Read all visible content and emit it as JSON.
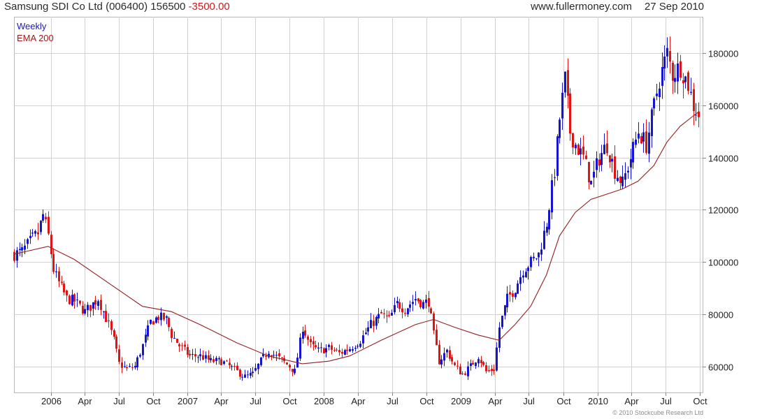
{
  "header": {
    "name": "Samsung SDI Co Ltd (006400)",
    "last": "156500",
    "change": "-3500.00",
    "site": "www.fullermoney.com",
    "date": "27 Sep 2010"
  },
  "legend": {
    "interval": "Weekly",
    "indicator": "EMA 200"
  },
  "credit": "© 2010 Stockcube Research Ltd",
  "colors": {
    "up": "#1414d2",
    "down": "#e01414",
    "ema": "#961e1e",
    "grid": "#d2d2d2"
  },
  "chart_data": {
    "type": "candlestick",
    "frequency": "weekly",
    "x_tick_labels": [
      "2006",
      "Apr",
      "Jul",
      "Oct",
      "2007",
      "Apr",
      "Jul",
      "Oct",
      "2008",
      "Apr",
      "Jul",
      "Oct",
      "2009",
      "Apr",
      "Jul",
      "Oct",
      "2010",
      "Apr",
      "Jul",
      "Oct"
    ],
    "y_tick_labels": [
      "60000",
      "80000",
      "100000",
      "120000",
      "140000",
      "160000",
      "180000"
    ],
    "ylim": [
      50000,
      194000
    ],
    "grid": true,
    "legend_position": "top-left",
    "price_path": [
      [
        "2005-09-26",
        103000
      ],
      [
        "2005-10-17",
        104000
      ],
      [
        "2005-11-14",
        109000
      ],
      [
        "2005-11-28",
        111000
      ],
      [
        "2005-12-12",
        118000
      ],
      [
        "2005-12-26",
        110000
      ],
      [
        "2006-01-09",
        97000
      ],
      [
        "2006-01-23",
        92000
      ],
      [
        "2006-02-13",
        86000
      ],
      [
        "2006-03-06",
        85000
      ],
      [
        "2006-04-03",
        81000
      ],
      [
        "2006-04-17",
        83000
      ],
      [
        "2006-05-08",
        86000
      ],
      [
        "2006-05-22",
        81000
      ],
      [
        "2006-06-05",
        76000
      ],
      [
        "2006-06-19",
        70000
      ],
      [
        "2006-07-03",
        61000
      ],
      [
        "2006-07-24",
        59000
      ],
      [
        "2006-08-14",
        60000
      ],
      [
        "2006-09-04",
        68000
      ],
      [
        "2006-09-25",
        77000
      ],
      [
        "2006-10-16",
        79000
      ],
      [
        "2006-11-06",
        78000
      ],
      [
        "2006-11-20",
        72000
      ],
      [
        "2006-12-11",
        68000
      ],
      [
        "2007-01-08",
        64000
      ],
      [
        "2007-02-05",
        64000
      ],
      [
        "2007-03-05",
        62000
      ],
      [
        "2007-04-02",
        62000
      ],
      [
        "2007-04-23",
        60000
      ],
      [
        "2007-05-14",
        58000
      ],
      [
        "2007-06-04",
        56000
      ],
      [
        "2007-06-25",
        57000
      ],
      [
        "2007-07-16",
        62000
      ],
      [
        "2007-08-06",
        66000
      ],
      [
        "2007-09-03",
        63000
      ],
      [
        "2007-10-01",
        60000
      ],
      [
        "2007-10-15",
        58000
      ],
      [
        "2007-11-05",
        75000
      ],
      [
        "2007-11-26",
        68000
      ],
      [
        "2007-12-17",
        66000
      ],
      [
        "2008-01-14",
        67000
      ],
      [
        "2008-02-11",
        65000
      ],
      [
        "2008-03-10",
        67000
      ],
      [
        "2008-04-07",
        70000
      ],
      [
        "2008-05-05",
        76000
      ],
      [
        "2008-06-02",
        80000
      ],
      [
        "2008-06-23",
        78000
      ],
      [
        "2008-07-14",
        84000
      ],
      [
        "2008-08-04",
        82000
      ],
      [
        "2008-09-01",
        86000
      ],
      [
        "2008-09-22",
        84000
      ],
      [
        "2008-10-06",
        85000
      ],
      [
        "2008-10-20",
        72000
      ],
      [
        "2008-11-03",
        62000
      ],
      [
        "2008-11-24",
        66000
      ],
      [
        "2008-12-15",
        60000
      ],
      [
        "2009-01-05",
        57000
      ],
      [
        "2009-01-26",
        60000
      ],
      [
        "2009-02-16",
        64000
      ],
      [
        "2009-03-09",
        58000
      ],
      [
        "2009-03-30",
        59000
      ],
      [
        "2009-04-13",
        75000
      ],
      [
        "2009-05-04",
        86000
      ],
      [
        "2009-05-25",
        90000
      ],
      [
        "2009-06-15",
        97000
      ],
      [
        "2009-07-06",
        100000
      ],
      [
        "2009-07-27",
        103000
      ],
      [
        "2009-08-17",
        115000
      ],
      [
        "2009-09-07",
        135000
      ],
      [
        "2009-09-21",
        155000
      ],
      [
        "2009-10-05",
        170000
      ],
      [
        "2009-10-19",
        150000
      ],
      [
        "2009-11-02",
        145000
      ],
      [
        "2009-11-23",
        140000
      ],
      [
        "2009-12-14",
        130000
      ],
      [
        "2010-01-04",
        140000
      ],
      [
        "2010-01-25",
        145000
      ],
      [
        "2010-02-15",
        135000
      ],
      [
        "2010-03-08",
        130000
      ],
      [
        "2010-03-29",
        140000
      ],
      [
        "2010-04-19",
        150000
      ],
      [
        "2010-05-10",
        145000
      ],
      [
        "2010-05-31",
        160000
      ],
      [
        "2010-06-14",
        170000
      ],
      [
        "2010-07-05",
        180000
      ],
      [
        "2010-07-19",
        172000
      ],
      [
        "2010-08-09",
        175000
      ],
      [
        "2010-08-30",
        168000
      ],
      [
        "2010-09-13",
        160000
      ],
      [
        "2010-09-27",
        156500
      ]
    ],
    "ema_200": [
      [
        "2005-09-26",
        103000
      ],
      [
        "2005-12-26",
        106000
      ],
      [
        "2006-03-06",
        101000
      ],
      [
        "2006-06-05",
        92000
      ],
      [
        "2006-09-04",
        83000
      ],
      [
        "2006-11-20",
        81000
      ],
      [
        "2007-02-05",
        76000
      ],
      [
        "2007-05-14",
        69000
      ],
      [
        "2007-08-06",
        64000
      ],
      [
        "2007-11-05",
        61000
      ],
      [
        "2008-01-14",
        62000
      ],
      [
        "2008-03-10",
        64000
      ],
      [
        "2008-06-02",
        70000
      ],
      [
        "2008-09-01",
        76000
      ],
      [
        "2008-10-20",
        78000
      ],
      [
        "2008-12-15",
        75000
      ],
      [
        "2009-02-16",
        72000
      ],
      [
        "2009-04-13",
        70000
      ],
      [
        "2009-05-25",
        76000
      ],
      [
        "2009-07-06",
        83000
      ],
      [
        "2009-08-17",
        95000
      ],
      [
        "2009-09-21",
        110000
      ],
      [
        "2009-11-02",
        119000
      ],
      [
        "2009-12-14",
        124000
      ],
      [
        "2010-01-25",
        126000
      ],
      [
        "2010-03-08",
        128000
      ],
      [
        "2010-04-19",
        131000
      ],
      [
        "2010-05-31",
        137000
      ],
      [
        "2010-07-05",
        146000
      ],
      [
        "2010-08-09",
        152000
      ],
      [
        "2010-09-13",
        156000
      ],
      [
        "2010-09-27",
        157500
      ]
    ]
  }
}
